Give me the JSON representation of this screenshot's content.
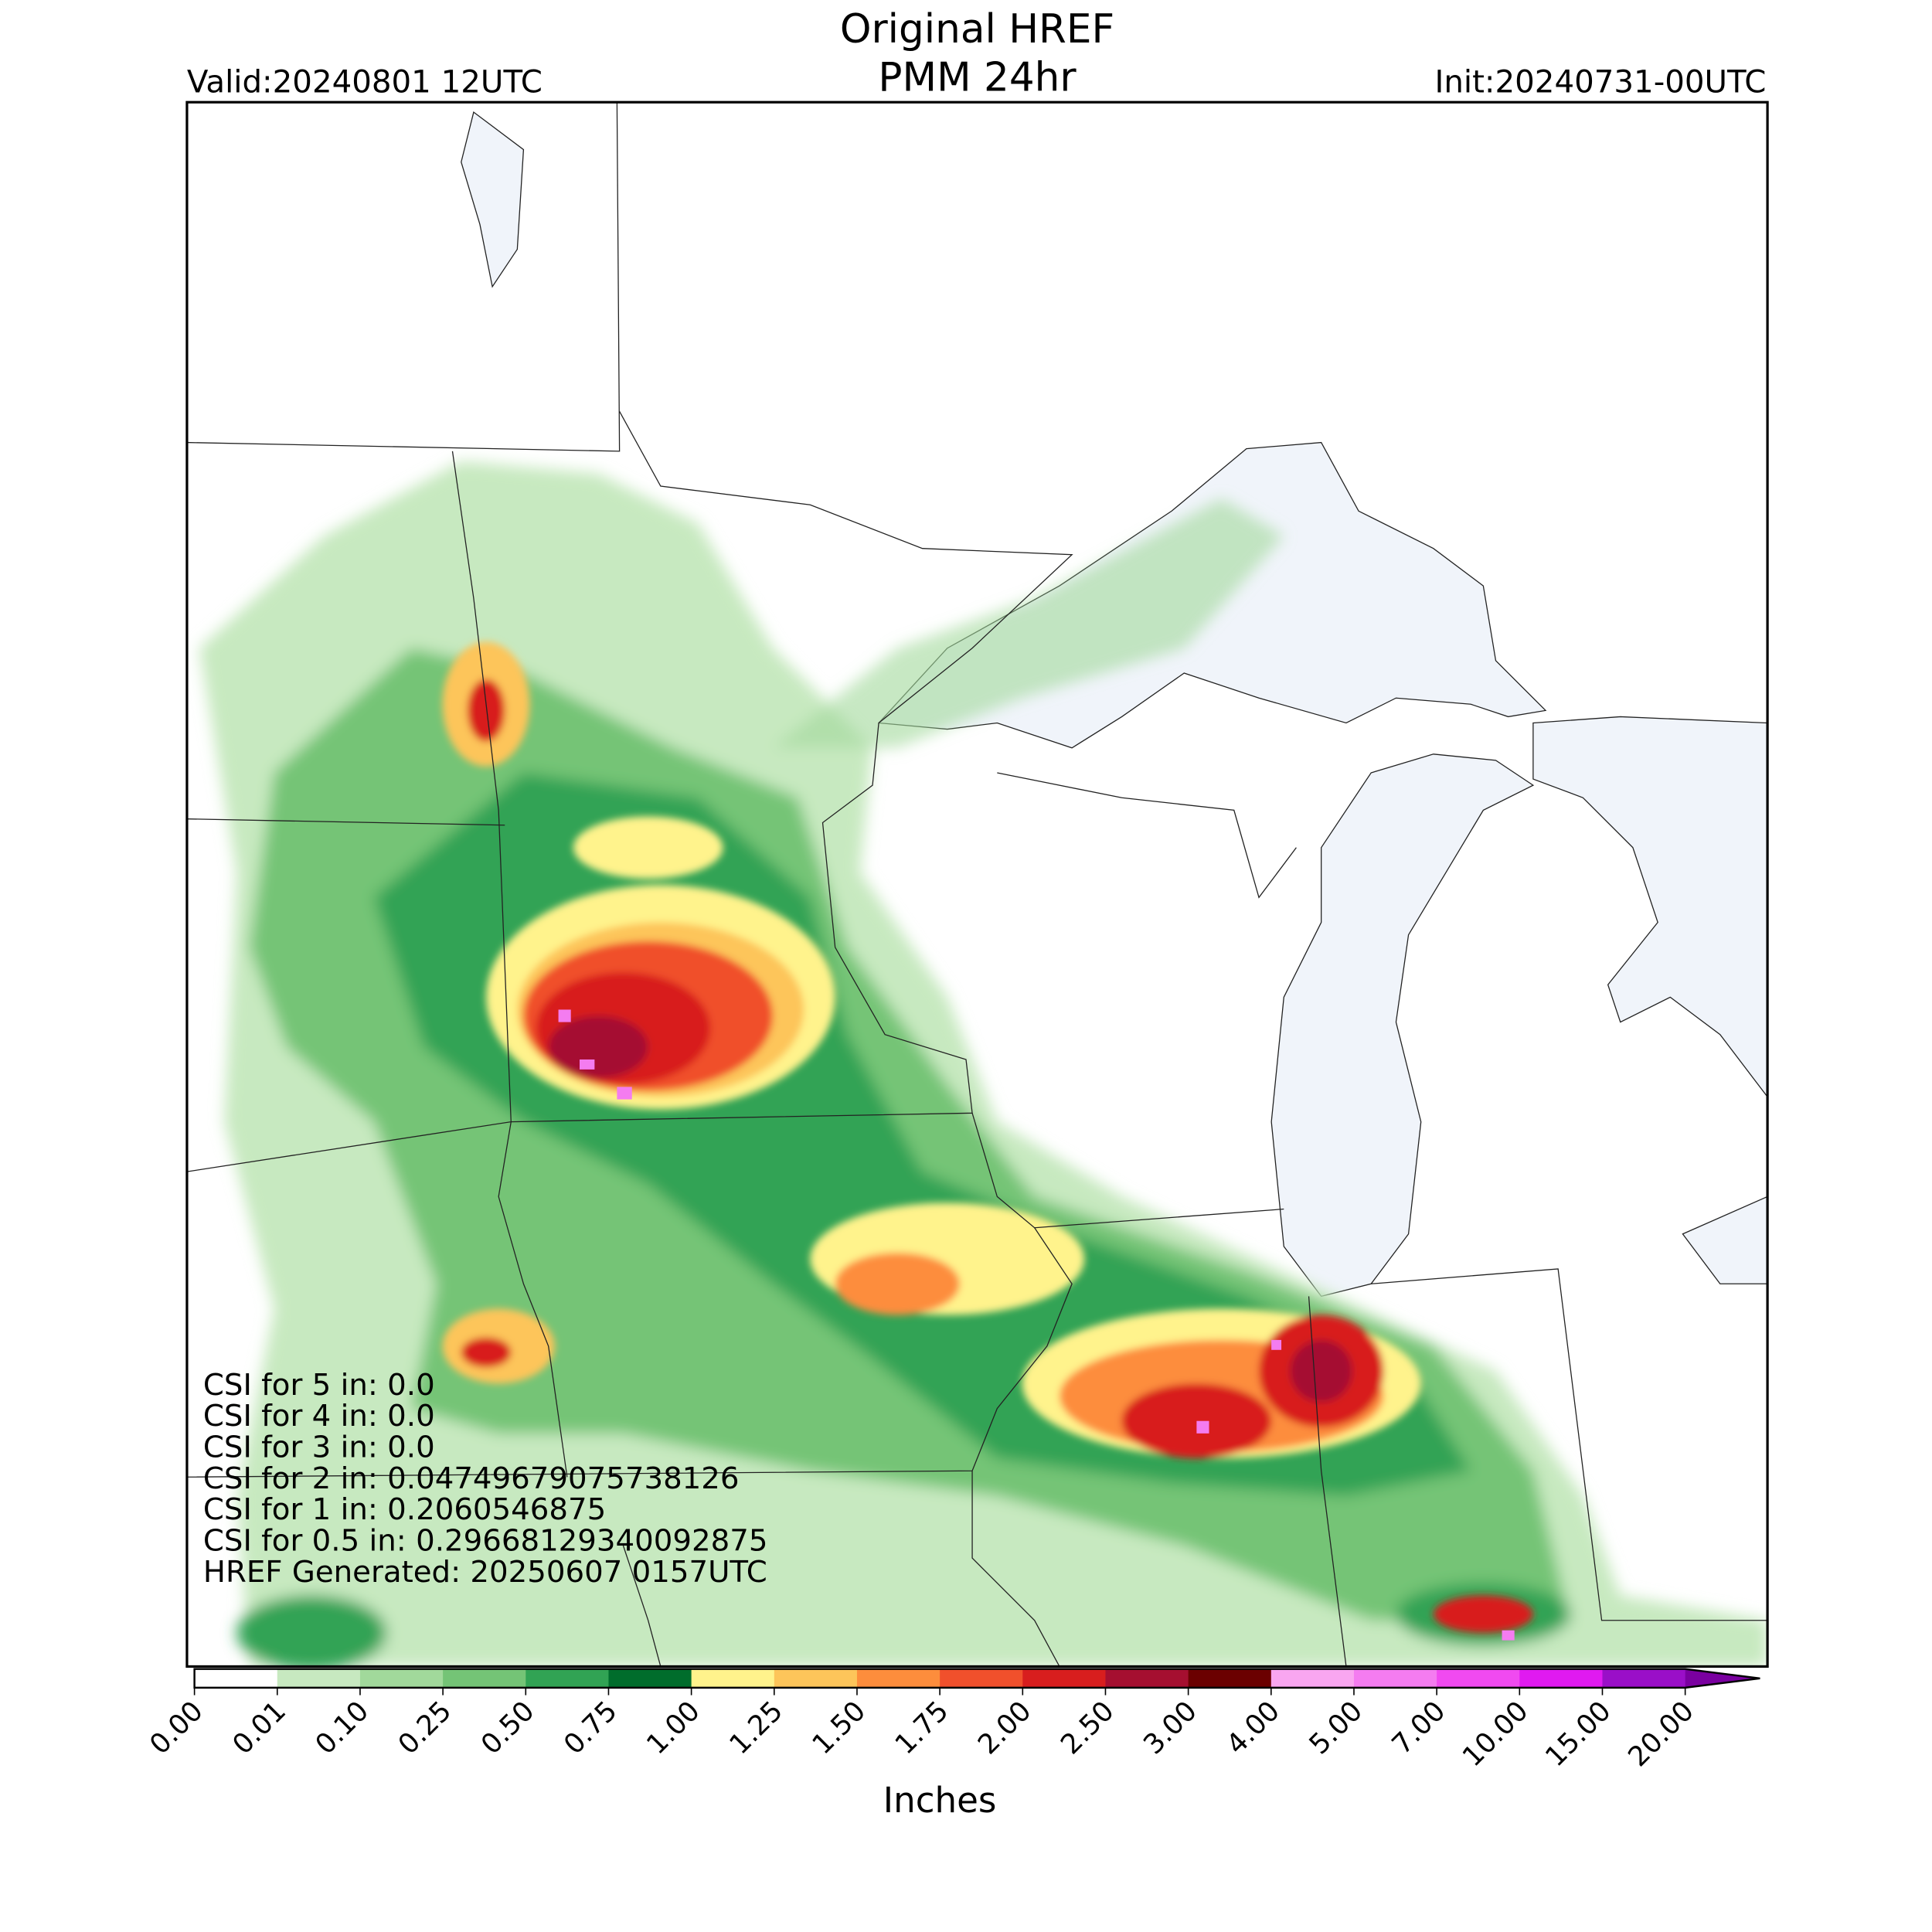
{
  "header": {
    "title_line1": "Original HREF",
    "title_line2": "PMM 24hr",
    "valid": "Valid:20240801 12UTC",
    "init": "Init:20240731-00UTC"
  },
  "annotations": [
    "CSI for 5 in: 0.0",
    "CSI for 4 in: 0.0",
    "CSI for 3 in: 0.0",
    "CSI for 2 in: 0.04749679075738126",
    "CSI for 1 in: 0.2060546875",
    "CSI for 0.5 in: 0.29668129340092875",
    "HREF Generated: 20250607 0157UTC"
  ],
  "colorbar": {
    "label": "Inches",
    "ticks": [
      "0.00",
      "0.01",
      "0.10",
      "0.25",
      "0.50",
      "0.75",
      "1.00",
      "1.25",
      "1.50",
      "1.75",
      "2.00",
      "2.50",
      "3.00",
      "4.00",
      "5.00",
      "7.00",
      "10.00",
      "15.00",
      "20.00"
    ],
    "colors": [
      "#ffffff",
      "#c7e9c0",
      "#a1d99b",
      "#74c476",
      "#31a354",
      "#006d2c",
      "#fff38c",
      "#fdc55a",
      "#fd8d3c",
      "#f0502c",
      "#d81e1e",
      "#a50f30",
      "#6b0000",
      "#f9a6f0",
      "#f47cf0",
      "#f04af0",
      "#e01af0",
      "#9a0fc8"
    ],
    "extend_color": "#7a00a0"
  }
}
